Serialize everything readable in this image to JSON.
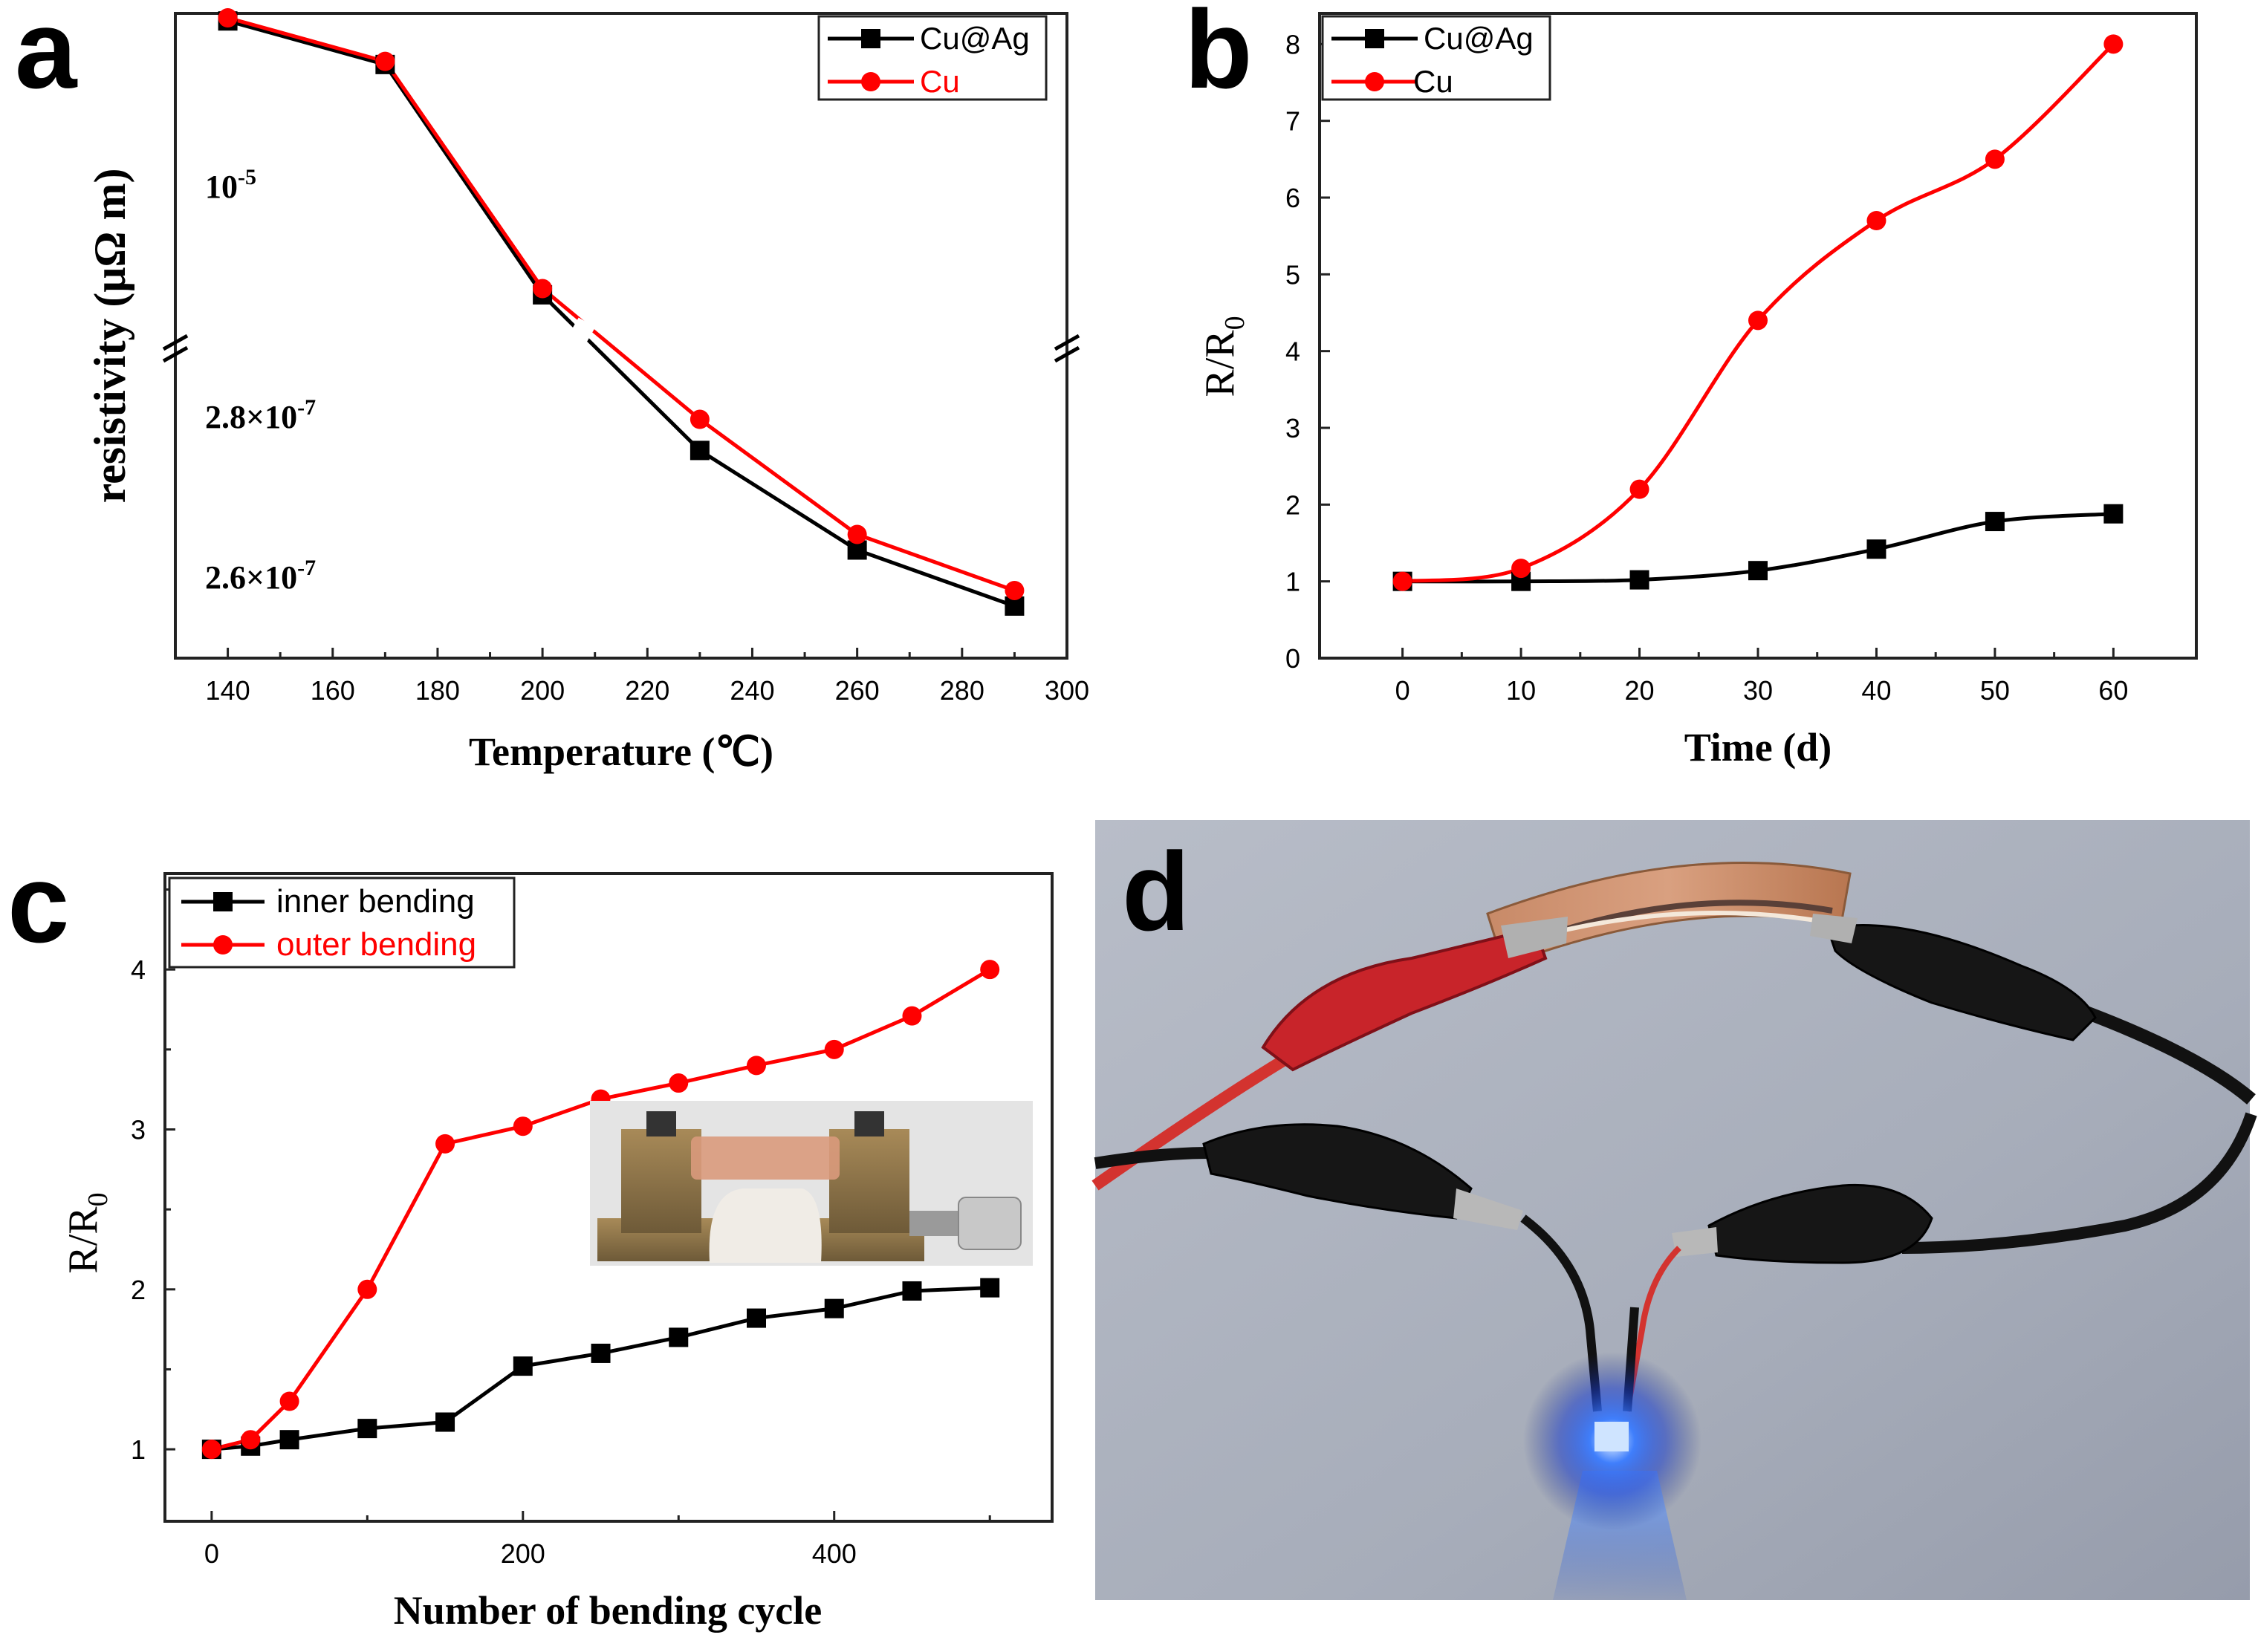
{
  "colors": {
    "black": "#000000",
    "red": "#ff0000",
    "axis": "#222222"
  },
  "chart_data": [
    {
      "panel": "a",
      "type": "line",
      "title": "",
      "xlabel": "Temperature (℃)",
      "ylabel": "resistivity (μΩ m)",
      "xlim": [
        130,
        300
      ],
      "x_ticks": [
        "140",
        "160",
        "180",
        "200",
        "220",
        "240",
        "260",
        "280",
        "300"
      ],
      "y_tick_labels": [
        "10-5",
        "2.8×10-7",
        "2.6×10-7"
      ],
      "axis_break": true,
      "grid": false,
      "legend": "top-right",
      "x": [
        140,
        170,
        200,
        230,
        260,
        290
      ],
      "series": [
        {
          "name": "Cu@Ag",
          "color": "#000000",
          "marker": "square",
          "values": [
            0.995,
            0.925,
            0.555,
            0.305,
            0.145,
            0.055
          ]
        },
        {
          "name": "Cu",
          "color": "#ff0000",
          "marker": "circle",
          "values": [
            1.0,
            0.93,
            0.565,
            0.355,
            0.17,
            0.08
          ]
        }
      ],
      "value_scale": "relative position on the broken resistivity axis"
    },
    {
      "panel": "b",
      "type": "line",
      "title": "",
      "xlabel": "Time (d)",
      "ylabel": "R/R0",
      "xlim": [
        -7,
        67
      ],
      "ylim": [
        0,
        8.4
      ],
      "x_ticks": [
        "0",
        "10",
        "20",
        "30",
        "40",
        "50",
        "60"
      ],
      "y_ticks": [
        "0",
        "1",
        "2",
        "3",
        "4",
        "5",
        "6",
        "7",
        "8"
      ],
      "grid": false,
      "legend": "top-left",
      "x": [
        0,
        10,
        20,
        30,
        40,
        50,
        60
      ],
      "series": [
        {
          "name": "Cu@Ag",
          "color": "#000000",
          "marker": "square",
          "values": [
            1.0,
            1.0,
            1.02,
            1.14,
            1.42,
            1.78,
            1.88
          ]
        },
        {
          "name": "Cu",
          "color": "#ff0000",
          "marker": "circle",
          "values": [
            1.0,
            1.17,
            2.2,
            4.4,
            5.7,
            6.5,
            8.0
          ]
        }
      ]
    },
    {
      "panel": "c",
      "type": "line",
      "title": "",
      "xlabel": "Number of bending cycle",
      "ylabel": "R/R0",
      "xlim": [
        -30,
        540
      ],
      "ylim": [
        0.55,
        4.6
      ],
      "x_ticks": [
        "0",
        "200",
        "400"
      ],
      "y_ticks": [
        "1",
        "2",
        "3",
        "4"
      ],
      "grid": false,
      "legend": "top-left",
      "inset": "photo of bending test fixture",
      "series": [
        {
          "name": "inner bending",
          "color": "#000000",
          "marker": "square",
          "x": [
            0,
            25,
            50,
            100,
            150,
            200,
            250,
            300,
            350,
            400,
            450,
            500
          ],
          "values": [
            1.0,
            1.02,
            1.06,
            1.13,
            1.17,
            1.52,
            1.6,
            1.7,
            1.82,
            1.88,
            1.99,
            2.01
          ]
        },
        {
          "name": "outer bending",
          "color": "#ff0000",
          "marker": "circle",
          "x": [
            0,
            25,
            50,
            100,
            150,
            200,
            250,
            300,
            350,
            400,
            450,
            500
          ],
          "values": [
            1.0,
            1.06,
            1.3,
            2.0,
            2.91,
            3.02,
            3.19,
            3.29,
            3.4,
            3.5,
            3.71,
            4.0
          ]
        }
      ]
    }
  ],
  "panels": {
    "a": "a",
    "b": "b",
    "c": "c",
    "d": "d"
  },
  "photo_d": {
    "description": "flexible Cu@Ag circuit lighting a blue LED"
  }
}
